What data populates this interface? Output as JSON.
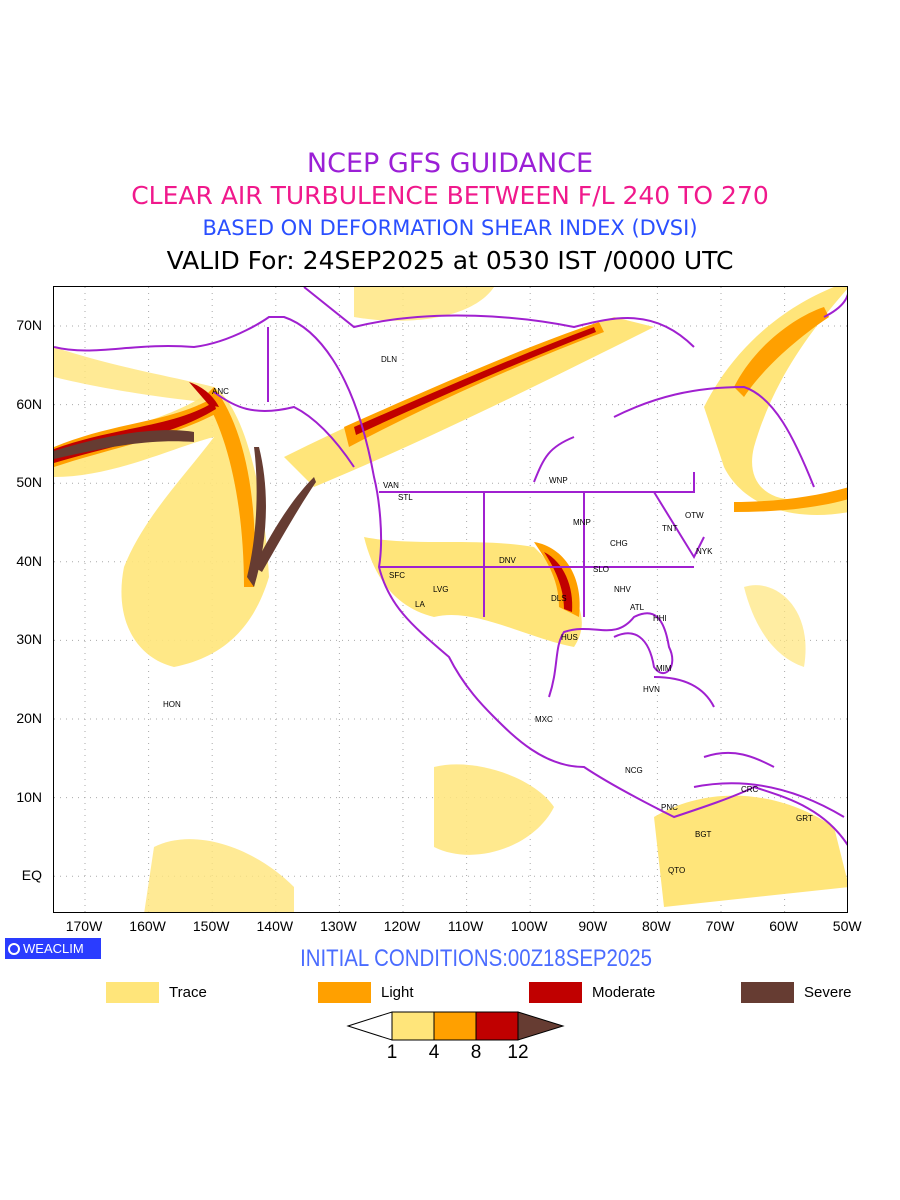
{
  "title": {
    "line1": "NCEP GFS GUIDANCE",
    "line2": "CLEAR AIR TURBULENCE BETWEEN F/L 240 TO 270",
    "line3": "BASED ON DEFORMATION SHEAR INDEX (DVSI)",
    "line4": "VALID For: 24SEP2025 at 0530 IST /0000 UTC"
  },
  "axes": {
    "x_ticks": [
      "170W",
      "160W",
      "150W",
      "140W",
      "130W",
      "120W",
      "110W",
      "100W",
      "90W",
      "80W",
      "70W",
      "60W",
      "50W"
    ],
    "y_ticks": [
      "70N",
      "60N",
      "50N",
      "40N",
      "30N",
      "20N",
      "10N",
      "EQ"
    ]
  },
  "cities": [
    "DLN",
    "ANC",
    "VAN",
    "STL",
    "WNP",
    "MNP",
    "TNT",
    "OTW",
    "CHG",
    "NYK",
    "DNV",
    "SLO",
    "SFC",
    "LVG",
    "LA",
    "NHV",
    "ATL",
    "DLS",
    "HHI",
    "HUS",
    "MIM",
    "HVN",
    "HON",
    "MXC",
    "NCG",
    "PNC",
    "CRC",
    "GRT",
    "BGT",
    "QTO"
  ],
  "logo": "WEACLIM",
  "initial_conditions": "INITIAL CONDITIONS:00Z18SEP2025",
  "legend": [
    {
      "label": "Trace",
      "color": "#ffe57a"
    },
    {
      "label": "Light",
      "color": "#ffa000"
    },
    {
      "label": "Moderate",
      "color": "#c00000"
    },
    {
      "label": "Severe",
      "color": "#663c32"
    }
  ],
  "colorbar": {
    "levels": [
      "1",
      "4",
      "8",
      "12"
    ]
  },
  "colors": {
    "boundaries": "#a020d0"
  }
}
